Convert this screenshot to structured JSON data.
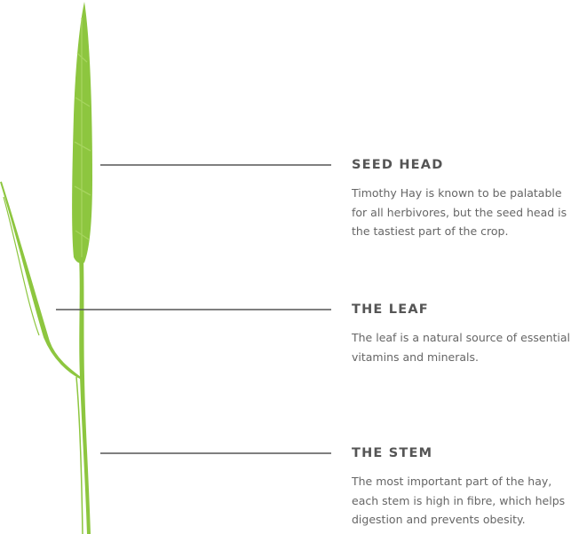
{
  "sections": [
    {
      "title": "SEED HEAD",
      "body": [
        "Timothy Hay is known to be palatable",
        "for all herbivores, but the seed head is",
        "the tastiest part of the crop."
      ]
    },
    {
      "title": "THE LEAF",
      "body": [
        "The leaf is a natural source of essential",
        "vitamins and minerals."
      ]
    },
    {
      "title": "THE STEM",
      "body": [
        "The most important part of the hay,",
        "each stem is high in fibre, which helps",
        "digestion and prevents obesity."
      ]
    }
  ]
}
